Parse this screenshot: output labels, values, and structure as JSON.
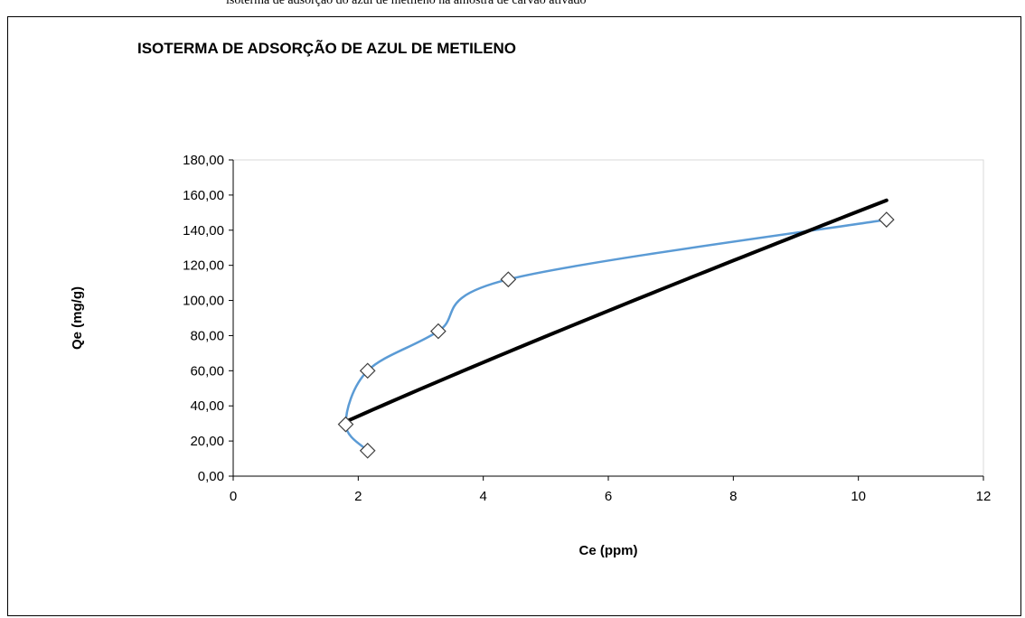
{
  "top_caption": "isoterma de adsorção do azul de metileno na amostra de carvão ativado",
  "chart_data": {
    "type": "scatter",
    "title": "ISOTERMA DE ADSORÇÃO DE AZUL DE METILENO",
    "xlabel": "Ce (ppm)",
    "ylabel": "Qe (mg/g)",
    "xlim": [
      0,
      12
    ],
    "ylim": [
      0,
      180
    ],
    "x_ticks": [
      "0",
      "2",
      "4",
      "6",
      "8",
      "10",
      "12"
    ],
    "y_ticks": [
      "0,00",
      "20,00",
      "40,00",
      "60,00",
      "80,00",
      "100,00",
      "120,00",
      "140,00",
      "160,00",
      "180,00"
    ],
    "grid": false,
    "legend": "none",
    "series": [
      {
        "points": [
          [
            2.15,
            14.5
          ],
          [
            1.8,
            29.5
          ],
          [
            2.15,
            60
          ],
          [
            3.28,
            82.5
          ],
          [
            4.4,
            112
          ],
          [
            10.45,
            146
          ]
        ],
        "line": "smooth",
        "marker": "diamond",
        "color": "#5b9bd5"
      },
      {
        "trendline": "power",
        "x_range": [
          1.8,
          10.45
        ],
        "y_range": [
          31,
          157
        ],
        "color": "#000000"
      }
    ]
  }
}
